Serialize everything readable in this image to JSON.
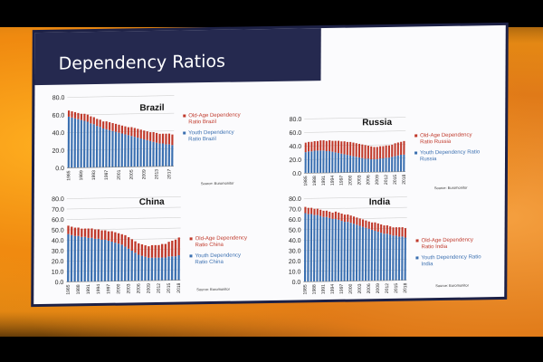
{
  "slide": {
    "title": "Dependency Ratios"
  },
  "chart_data": [
    {
      "id": "brazil",
      "type": "bar",
      "stacked": true,
      "title": "Brazil",
      "ylim": [
        0,
        80
      ],
      "yticks": [
        "0.0",
        "20.0",
        "40.0",
        "60.0",
        "80.0"
      ],
      "ytick_values": [
        0,
        20,
        40,
        60,
        80
      ],
      "xtick_labels": [
        "1985",
        "1989",
        "1993",
        "1997",
        "2001",
        "2005",
        "2009",
        "2013",
        "2017"
      ],
      "x": [
        1985,
        1986,
        1987,
        1988,
        1989,
        1990,
        1991,
        1992,
        1993,
        1994,
        1995,
        1996,
        1997,
        1998,
        1999,
        2000,
        2001,
        2002,
        2003,
        2004,
        2005,
        2006,
        2007,
        2008,
        2009,
        2010,
        2011,
        2012,
        2013,
        2014,
        2015,
        2016,
        2017,
        2018
      ],
      "series": [
        {
          "name": "Youth Dependency Ratio Brazil",
          "color": "#3a6fb0",
          "values": [
            58,
            57,
            56,
            55,
            54,
            53,
            52,
            50,
            49,
            47,
            46,
            44,
            43,
            42,
            41,
            40,
            39,
            38,
            37,
            36,
            35,
            34,
            33,
            32,
            31,
            30,
            29,
            28,
            27,
            26,
            26,
            25,
            25,
            24
          ]
        },
        {
          "name": "Old-Age Dependency Ratio Brazil",
          "color": "#c0392b",
          "values": [
            7,
            7,
            7,
            7,
            7,
            8,
            8,
            8,
            8,
            8,
            8,
            8,
            9,
            9,
            9,
            9,
            9,
            9,
            9,
            9,
            10,
            10,
            10,
            10,
            10,
            10,
            10,
            11,
            11,
            11,
            11,
            12,
            12,
            12
          ]
        }
      ],
      "legend": [
        "Old-Age Dependency Ratio Brazil",
        "Youth Dependency Ratio Brazil"
      ],
      "source": "Source: Euromonitor"
    },
    {
      "id": "russia",
      "type": "bar",
      "stacked": true,
      "title": "Russia",
      "ylim": [
        0,
        80
      ],
      "yticks": [
        "0.0",
        "20.0",
        "40.0",
        "60.0",
        "80.0"
      ],
      "ytick_values": [
        0,
        20,
        40,
        60,
        80
      ],
      "xtick_labels": [
        "1985",
        "1988",
        "1991",
        "1994",
        "1997",
        "2000",
        "2003",
        "2006",
        "2009",
        "2012",
        "2015",
        "2018"
      ],
      "x": [
        1985,
        1986,
        1987,
        1988,
        1989,
        1990,
        1991,
        1992,
        1993,
        1994,
        1995,
        1996,
        1997,
        1998,
        1999,
        2000,
        2001,
        2002,
        2003,
        2004,
        2005,
        2006,
        2007,
        2008,
        2009,
        2010,
        2011,
        2012,
        2013,
        2014,
        2015,
        2016,
        2017,
        2018
      ],
      "series": [
        {
          "name": "Youth Dependency Ratio Russia",
          "color": "#3a6fb0",
          "values": [
            31,
            32,
            32,
            33,
            33,
            33,
            33,
            32,
            32,
            31,
            30,
            29,
            28,
            27,
            26,
            25,
            24,
            23,
            22,
            21,
            20,
            20,
            19,
            19,
            19,
            20,
            20,
            21,
            21,
            22,
            23,
            24,
            25,
            25
          ]
        },
        {
          "name": "Old-Age Dependency Ratio Russia",
          "color": "#c0392b",
          "values": [
            14,
            14,
            14,
            14,
            14,
            15,
            15,
            15,
            16,
            16,
            17,
            18,
            18,
            19,
            19,
            20,
            20,
            20,
            20,
            20,
            20,
            19,
            19,
            18,
            18,
            18,
            18,
            18,
            18,
            18,
            19,
            19,
            19,
            20
          ]
        }
      ],
      "legend": [
        "Old-Age Dependency Ratio Russia",
        "Youth Dependency Ratio Russia"
      ],
      "source": "Source: Euromonitor"
    },
    {
      "id": "china",
      "type": "bar",
      "stacked": true,
      "title": "China",
      "ylim": [
        0,
        80
      ],
      "yticks": [
        "0.0",
        "10.0",
        "20.0",
        "30.0",
        "40.0",
        "50.0",
        "60.0",
        "70.0",
        "80.0"
      ],
      "ytick_values": [
        0,
        10,
        20,
        30,
        40,
        50,
        60,
        70,
        80
      ],
      "xtick_labels": [
        "1985",
        "1988",
        "1991",
        "1994",
        "1997",
        "2000",
        "2003",
        "2006",
        "2009",
        "2012",
        "2015",
        "2018"
      ],
      "x": [
        1985,
        1986,
        1987,
        1988,
        1989,
        1990,
        1991,
        1992,
        1993,
        1994,
        1995,
        1996,
        1997,
        1998,
        1999,
        2000,
        2001,
        2002,
        2003,
        2004,
        2005,
        2006,
        2007,
        2008,
        2009,
        2010,
        2011,
        2012,
        2013,
        2014,
        2015,
        2016,
        2017,
        2018
      ],
      "series": [
        {
          "name": "Youth Dependency Ratio China",
          "color": "#3a6fb0",
          "values": [
            46,
            45,
            44,
            44,
            43,
            43,
            42,
            42,
            41,
            41,
            40,
            40,
            39,
            38,
            37,
            36,
            35,
            33,
            31,
            29,
            27,
            25,
            24,
            23,
            22,
            22,
            22,
            22,
            22,
            22,
            23,
            23,
            23,
            24
          ]
        },
        {
          "name": "Old-Age Dependency Ratio China",
          "color": "#c0392b",
          "values": [
            8,
            8,
            8,
            8,
            8,
            8,
            9,
            9,
            9,
            9,
            9,
            9,
            9,
            10,
            10,
            10,
            10,
            11,
            11,
            11,
            11,
            11,
            11,
            11,
            11,
            12,
            12,
            12,
            13,
            13,
            14,
            15,
            16,
            17
          ]
        }
      ],
      "legend": [
        "Old-Age Dependency Ratio China",
        "Youth Dependency Ratio China"
      ],
      "source": "Source: Euromonitor"
    },
    {
      "id": "india",
      "type": "bar",
      "stacked": true,
      "title": "India",
      "ylim": [
        0,
        80
      ],
      "yticks": [
        "0.0",
        "10.0",
        "20.0",
        "30.0",
        "40.0",
        "50.0",
        "60.0",
        "70.0",
        "80.0"
      ],
      "ytick_values": [
        0,
        10,
        20,
        30,
        40,
        50,
        60,
        70,
        80
      ],
      "xtick_labels": [
        "1985",
        "1988",
        "1991",
        "1994",
        "1997",
        "2000",
        "2003",
        "2006",
        "2009",
        "2012",
        "2015",
        "2018"
      ],
      "x": [
        1985,
        1986,
        1987,
        1988,
        1989,
        1990,
        1991,
        1992,
        1993,
        1994,
        1995,
        1996,
        1997,
        1998,
        1999,
        2000,
        2001,
        2002,
        2003,
        2004,
        2005,
        2006,
        2007,
        2008,
        2009,
        2010,
        2011,
        2012,
        2013,
        2014,
        2015,
        2016,
        2017,
        2018
      ],
      "series": [
        {
          "name": "Youth Dependency Ratio India",
          "color": "#3a6fb0",
          "values": [
            66,
            65,
            65,
            64,
            64,
            63,
            62,
            62,
            61,
            60,
            60,
            59,
            58,
            57,
            57,
            56,
            55,
            54,
            53,
            52,
            51,
            50,
            49,
            48,
            47,
            46,
            45,
            45,
            44,
            43,
            43,
            42,
            42,
            41
          ]
        },
        {
          "name": "Old-Age Dependency Ratio India",
          "color": "#c0392b",
          "values": [
            6,
            6,
            6,
            6,
            6,
            6,
            6,
            6,
            6,
            6,
            7,
            7,
            7,
            7,
            7,
            7,
            7,
            7,
            7,
            7,
            7,
            7,
            7,
            8,
            8,
            8,
            8,
            8,
            8,
            8,
            8,
            9,
            9,
            9
          ]
        }
      ],
      "legend": [
        "Old-Age Dependency Ratio India",
        "Youth Dependency Ratio India"
      ],
      "source": "Source: Euromonitor"
    }
  ]
}
